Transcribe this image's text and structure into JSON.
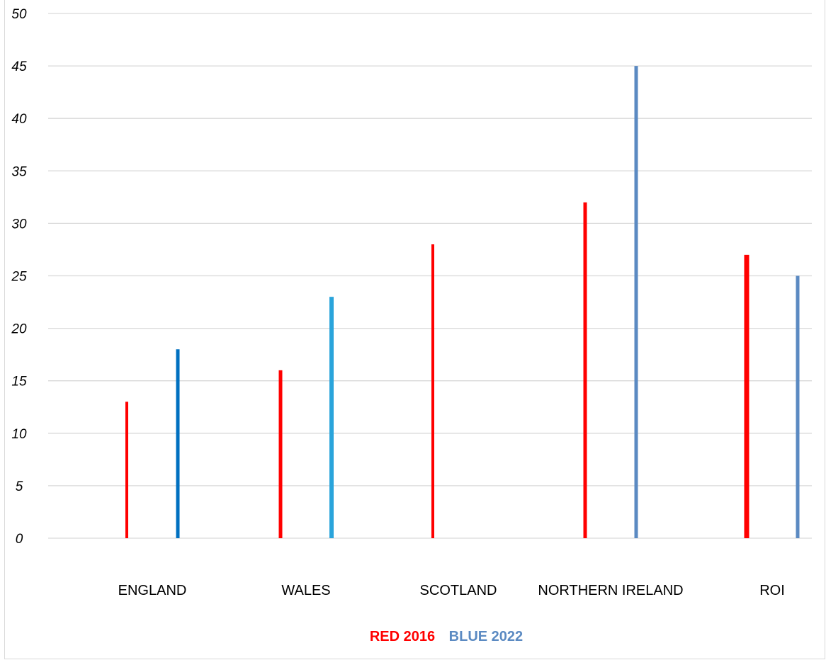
{
  "chart_data": {
    "type": "bar",
    "categories": [
      "ENGLAND",
      "WALES",
      "SCOTLAND",
      "NORTHERN IRELAND",
      "ROI"
    ],
    "series": [
      {
        "name": "RED 2016",
        "values": [
          13,
          16,
          28,
          32,
          27
        ],
        "colors": [
          "#ff0000",
          "#ff0000",
          "#ff0000",
          "#ff0000",
          "#ff0000"
        ]
      },
      {
        "name": "BLUE 2022",
        "values": [
          18,
          23,
          null,
          45,
          25
        ],
        "colors": [
          "#0070c0",
          "#2aa4db",
          null,
          "#5b8ac2",
          "#5b8ac2"
        ]
      }
    ],
    "xlabel": "",
    "ylabel": "",
    "ylim": [
      0,
      50
    ],
    "yticks": [
      "0",
      "5",
      "10",
      "15",
      "20",
      "25",
      "30",
      "35",
      "40",
      "45",
      "50"
    ],
    "grid": true,
    "legend": {
      "placement": "bottom",
      "items": [
        {
          "label": "RED 2016",
          "color": "#ff0000"
        },
        {
          "label": "BLUE 2022",
          "color": "#5b8ac2"
        }
      ]
    }
  }
}
